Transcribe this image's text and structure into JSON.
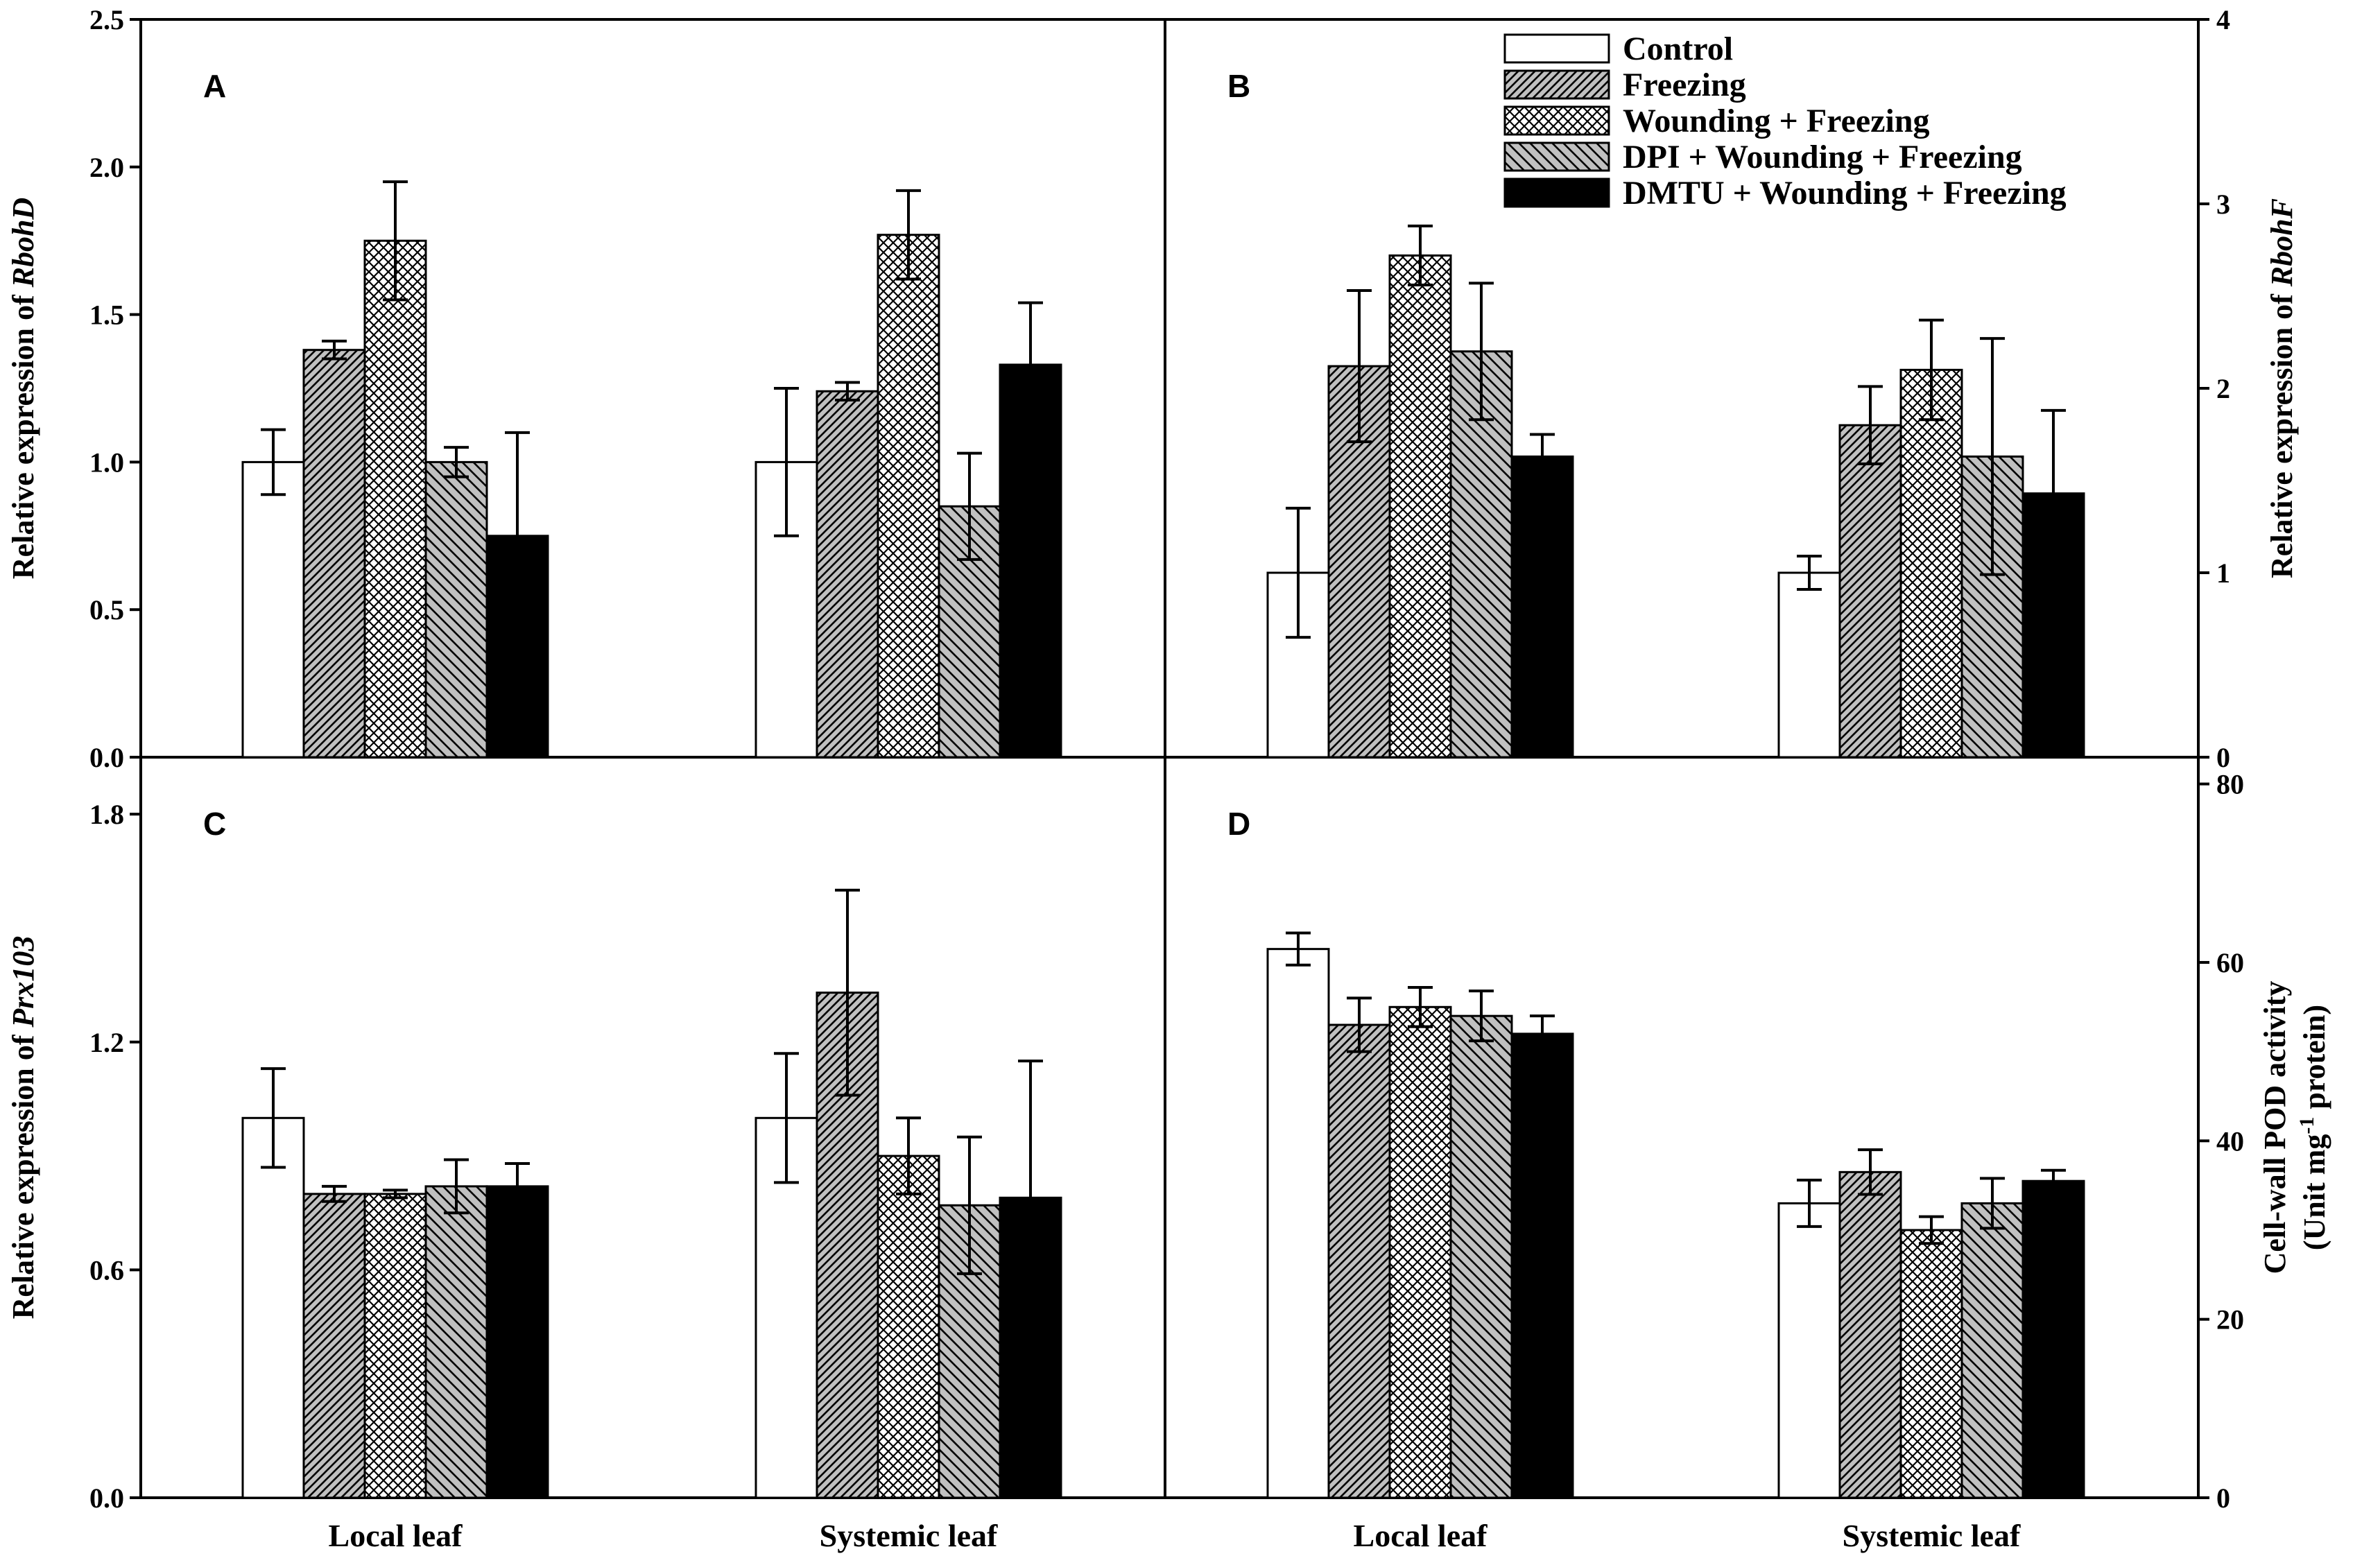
{
  "series_names": [
    "Control",
    "Freezing",
    "Wounding + Freezing",
    "DPI + Wounding + Freezing",
    "DMTU + Wounding + Freezing"
  ],
  "patterns": [
    "empty",
    "hatch-dense",
    "crosshatch",
    "hatch-sparse",
    "solid"
  ],
  "colors": {
    "ink": "#000000",
    "fill_gray": "#c0c0c0",
    "background": "#ffffff"
  },
  "chart_data": [
    {
      "panel": "A",
      "type": "bar",
      "y_axis_side": "left",
      "ylabel_prefix": "Relative expression of ",
      "ylabel_gene": "RbohD",
      "ylim": [
        0,
        2.5
      ],
      "yticks": [
        "0.0",
        "0.5",
        "1.0",
        "1.5",
        "2.0",
        "2.5"
      ],
      "categories": [
        "Local leaf",
        "Systemic leaf"
      ],
      "series": [
        {
          "name": "Control",
          "values": [
            1.0,
            1.0
          ],
          "errors": [
            0.11,
            0.25
          ]
        },
        {
          "name": "Freezing",
          "values": [
            1.38,
            1.24
          ],
          "errors": [
            0.03,
            0.03
          ]
        },
        {
          "name": "Wounding + Freezing",
          "values": [
            1.75,
            1.77
          ],
          "errors": [
            0.2,
            0.15
          ]
        },
        {
          "name": "DPI + Wounding + Freezing",
          "values": [
            1.0,
            0.85
          ],
          "errors": [
            0.05,
            0.18
          ]
        },
        {
          "name": "DMTU + Wounding + Freezing",
          "values": [
            0.75,
            1.33
          ],
          "errors": [
            0.35,
            0.21
          ]
        }
      ]
    },
    {
      "panel": "B",
      "type": "bar",
      "y_axis_side": "right",
      "ylabel_prefix": "Relative expression of ",
      "ylabel_gene": "RbohF",
      "ylim": [
        0,
        4
      ],
      "yticks": [
        "0",
        "1",
        "2",
        "3",
        "4"
      ],
      "categories": [
        "Local leaf",
        "Systemic leaf"
      ],
      "series": [
        {
          "name": "Control",
          "values": [
            1.0,
            1.0
          ],
          "errors": [
            0.35,
            0.09
          ]
        },
        {
          "name": "Freezing",
          "values": [
            2.12,
            1.8
          ],
          "errors": [
            0.41,
            0.21
          ]
        },
        {
          "name": "Wounding + Freezing",
          "values": [
            2.72,
            2.1
          ],
          "errors": [
            0.16,
            0.27
          ]
        },
        {
          "name": "DPI + Wounding + Freezing",
          "values": [
            2.2,
            1.63
          ],
          "errors": [
            0.37,
            0.64
          ]
        },
        {
          "name": "DMTU + Wounding + Freezing",
          "values": [
            1.63,
            1.43
          ],
          "errors": [
            0.12,
            0.45
          ]
        }
      ]
    },
    {
      "panel": "C",
      "type": "bar",
      "y_axis_side": "left",
      "ylabel_prefix": "Relative expression of ",
      "ylabel_gene": "Prx103",
      "ylim": [
        0,
        1.95
      ],
      "yticks": [
        "0.0",
        "0.6",
        "1.2",
        "1.8"
      ],
      "ytick_values": [
        0,
        0.6,
        1.2,
        1.8
      ],
      "categories": [
        "Local leaf",
        "Systemic leaf"
      ],
      "series": [
        {
          "name": "Control",
          "values": [
            1.0,
            1.0
          ],
          "errors": [
            0.13,
            0.17
          ]
        },
        {
          "name": "Freezing",
          "values": [
            0.8,
            1.33
          ],
          "errors": [
            0.02,
            0.27
          ]
        },
        {
          "name": "Wounding + Freezing",
          "values": [
            0.8,
            0.9
          ],
          "errors": [
            0.01,
            0.1
          ]
        },
        {
          "name": "DPI + Wounding + Freezing",
          "values": [
            0.82,
            0.77
          ],
          "errors": [
            0.07,
            0.18
          ]
        },
        {
          "name": "DMTU + Wounding + Freezing",
          "values": [
            0.82,
            0.79
          ],
          "errors": [
            0.06,
            0.36
          ]
        }
      ]
    },
    {
      "panel": "D",
      "type": "bar",
      "y_axis_side": "right",
      "ylabel_line1": "Cell-wall POD activity",
      "ylabel_line2_pre": "(Unit mg",
      "ylabel_line2_sup": "-1",
      "ylabel_line2_post": " protein)",
      "ylim": [
        0,
        83
      ],
      "yticks": [
        "0",
        "20",
        "40",
        "60",
        "80"
      ],
      "ytick_values": [
        0,
        20,
        40,
        60,
        80
      ],
      "categories": [
        "Local leaf",
        "Systemic leaf"
      ],
      "series": [
        {
          "name": "Control",
          "values": [
            61.5,
            33
          ],
          "errors": [
            1.8,
            2.6
          ]
        },
        {
          "name": "Freezing",
          "values": [
            53,
            36.5
          ],
          "errors": [
            3,
            2.5
          ]
        },
        {
          "name": "Wounding + Freezing",
          "values": [
            55,
            30
          ],
          "errors": [
            2.2,
            1.5
          ]
        },
        {
          "name": "DPI + Wounding + Freezing",
          "values": [
            54,
            33
          ],
          "errors": [
            2.8,
            2.8
          ]
        },
        {
          "name": "DMTU + Wounding + Freezing",
          "values": [
            52,
            35.5
          ],
          "errors": [
            2,
            1.2
          ]
        }
      ]
    }
  ]
}
